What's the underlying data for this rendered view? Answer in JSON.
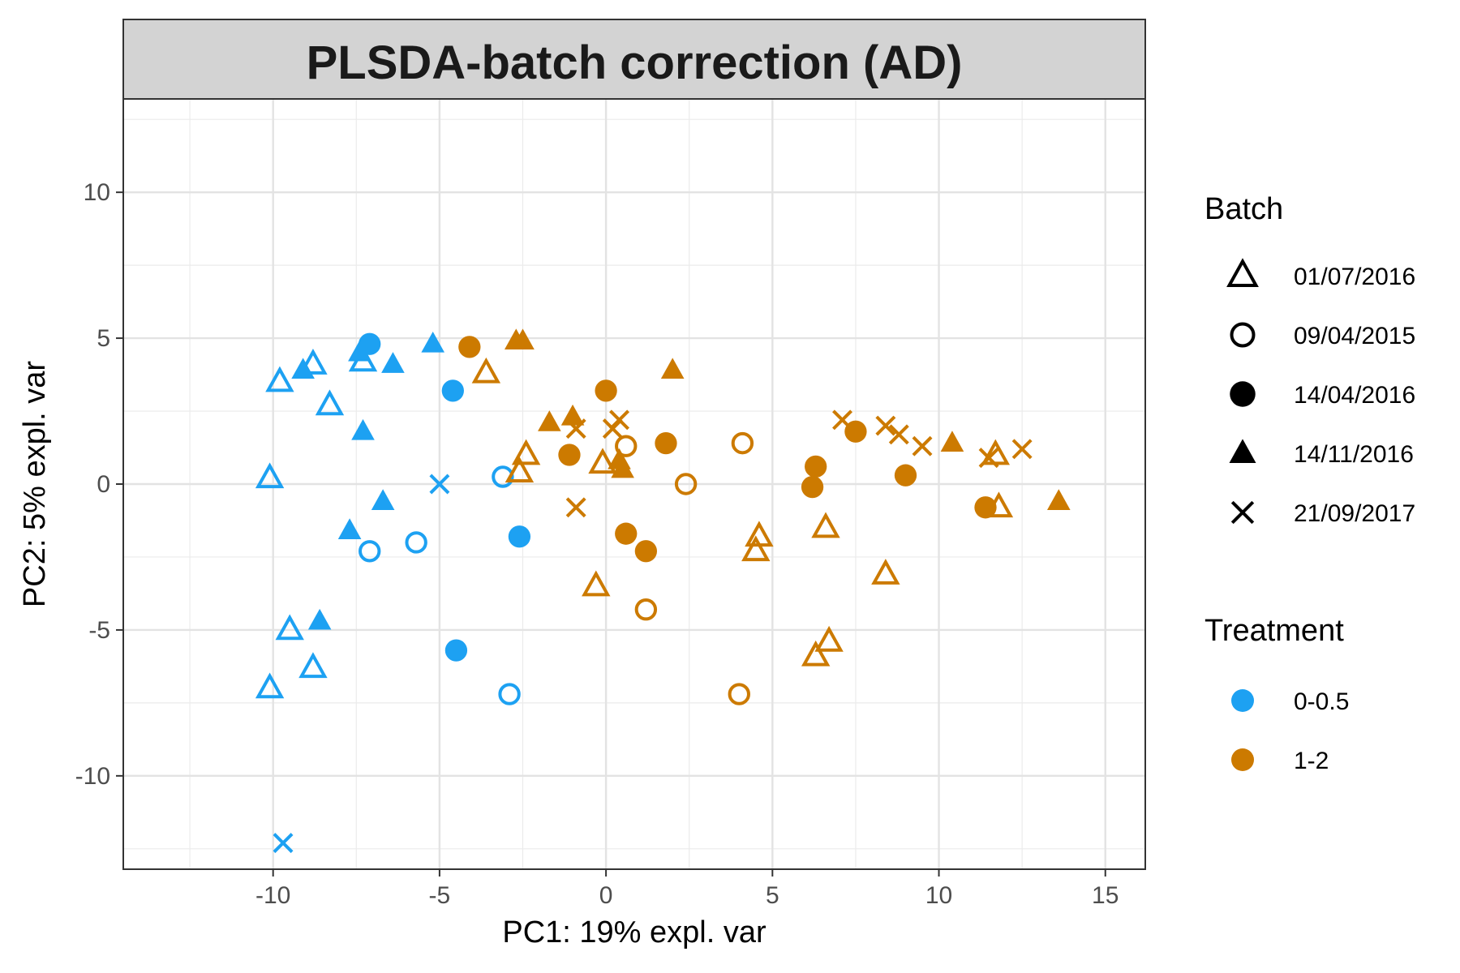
{
  "chart_data": {
    "type": "scatter",
    "title": "PLSDA-batch correction (AD)",
    "xlabel": "PC1: 19% expl. var",
    "ylabel": "PC2: 5% expl. var",
    "xlim": [
      -14.5,
      16.2
    ],
    "ylim": [
      -13.2,
      13.2
    ],
    "xticks": [
      -10,
      -5,
      0,
      5,
      10,
      15
    ],
    "xtick_labels": [
      "-10",
      "-5",
      "0",
      "5",
      "10",
      "15"
    ],
    "yticks": [
      -10,
      -5,
      0,
      5,
      10
    ],
    "ytick_labels": [
      "-10",
      "-5",
      "0",
      "5",
      "10"
    ],
    "grid": true,
    "legend_placement": "right",
    "batch_legend": {
      "title": "Batch",
      "items": [
        {
          "label": "01/07/2016",
          "shape": "triangle-open"
        },
        {
          "label": "09/04/2015",
          "shape": "circle-open"
        },
        {
          "label": "14/04/2016",
          "shape": "circle-filled"
        },
        {
          "label": "14/11/2016",
          "shape": "triangle-filled"
        },
        {
          "label": "21/09/2017",
          "shape": "cross"
        }
      ]
    },
    "treatment_legend": {
      "title": "Treatment",
      "items": [
        {
          "label": "0-0.5",
          "color": "#1da1f2"
        },
        {
          "label": "1-2",
          "color": "#cc7a00"
        }
      ]
    },
    "points": [
      {
        "x": -7.1,
        "y": 4.8,
        "batch": "14/04/2016",
        "treatment": "0-0.5"
      },
      {
        "x": -4.6,
        "y": 3.2,
        "batch": "14/04/2016",
        "treatment": "0-0.5"
      },
      {
        "x": -2.6,
        "y": -1.8,
        "batch": "14/04/2016",
        "treatment": "0-0.5"
      },
      {
        "x": -4.5,
        "y": -5.7,
        "batch": "14/04/2016",
        "treatment": "0-0.5"
      },
      {
        "x": -9.8,
        "y": 3.5,
        "batch": "01/07/2016",
        "treatment": "0-0.5"
      },
      {
        "x": -8.8,
        "y": 4.1,
        "batch": "01/07/2016",
        "treatment": "0-0.5"
      },
      {
        "x": -7.3,
        "y": 4.2,
        "batch": "01/07/2016",
        "treatment": "0-0.5"
      },
      {
        "x": -8.3,
        "y": 2.7,
        "batch": "01/07/2016",
        "treatment": "0-0.5"
      },
      {
        "x": -10.1,
        "y": 0.2,
        "batch": "01/07/2016",
        "treatment": "0-0.5"
      },
      {
        "x": -9.5,
        "y": -5.0,
        "batch": "01/07/2016",
        "treatment": "0-0.5"
      },
      {
        "x": -8.8,
        "y": -6.3,
        "batch": "01/07/2016",
        "treatment": "0-0.5"
      },
      {
        "x": -10.1,
        "y": -7.0,
        "batch": "01/07/2016",
        "treatment": "0-0.5"
      },
      {
        "x": -9.1,
        "y": 3.9,
        "batch": "14/11/2016",
        "treatment": "0-0.5"
      },
      {
        "x": -7.4,
        "y": 4.5,
        "batch": "14/11/2016",
        "treatment": "0-0.5"
      },
      {
        "x": -6.4,
        "y": 4.1,
        "batch": "14/11/2016",
        "treatment": "0-0.5"
      },
      {
        "x": -5.2,
        "y": 4.8,
        "batch": "14/11/2016",
        "treatment": "0-0.5"
      },
      {
        "x": -7.3,
        "y": 1.8,
        "batch": "14/11/2016",
        "treatment": "0-0.5"
      },
      {
        "x": -6.7,
        "y": -0.6,
        "batch": "14/11/2016",
        "treatment": "0-0.5"
      },
      {
        "x": -7.7,
        "y": -1.6,
        "batch": "14/11/2016",
        "treatment": "0-0.5"
      },
      {
        "x": -8.6,
        "y": -4.7,
        "batch": "14/11/2016",
        "treatment": "0-0.5"
      },
      {
        "x": -3.1,
        "y": 0.25,
        "batch": "09/04/2015",
        "treatment": "0-0.5"
      },
      {
        "x": -7.1,
        "y": -2.3,
        "batch": "09/04/2015",
        "treatment": "0-0.5"
      },
      {
        "x": -5.7,
        "y": -2.0,
        "batch": "09/04/2015",
        "treatment": "0-0.5"
      },
      {
        "x": -2.9,
        "y": -7.2,
        "batch": "09/04/2015",
        "treatment": "0-0.5"
      },
      {
        "x": -5.0,
        "y": 0.0,
        "batch": "21/09/2017",
        "treatment": "0-0.5"
      },
      {
        "x": -9.7,
        "y": -12.3,
        "batch": "21/09/2017",
        "treatment": "0-0.5"
      },
      {
        "x": -4.1,
        "y": 4.7,
        "batch": "14/04/2016",
        "treatment": "1-2"
      },
      {
        "x": 0.0,
        "y": 3.2,
        "batch": "14/04/2016",
        "treatment": "1-2"
      },
      {
        "x": -1.1,
        "y": 1.0,
        "batch": "14/04/2016",
        "treatment": "1-2"
      },
      {
        "x": 1.8,
        "y": 1.4,
        "batch": "14/04/2016",
        "treatment": "1-2"
      },
      {
        "x": 0.6,
        "y": -1.7,
        "batch": "14/04/2016",
        "treatment": "1-2"
      },
      {
        "x": 1.2,
        "y": -2.3,
        "batch": "14/04/2016",
        "treatment": "1-2"
      },
      {
        "x": 6.3,
        "y": 0.6,
        "batch": "14/04/2016",
        "treatment": "1-2"
      },
      {
        "x": 6.2,
        "y": -0.1,
        "batch": "14/04/2016",
        "treatment": "1-2"
      },
      {
        "x": 7.5,
        "y": 1.8,
        "batch": "14/04/2016",
        "treatment": "1-2"
      },
      {
        "x": 9.0,
        "y": 0.3,
        "batch": "14/04/2016",
        "treatment": "1-2"
      },
      {
        "x": 11.4,
        "y": -0.8,
        "batch": "14/04/2016",
        "treatment": "1-2"
      },
      {
        "x": -3.6,
        "y": 3.8,
        "batch": "01/07/2016",
        "treatment": "1-2"
      },
      {
        "x": -2.4,
        "y": 1.0,
        "batch": "01/07/2016",
        "treatment": "1-2"
      },
      {
        "x": -2.6,
        "y": 0.4,
        "batch": "01/07/2016",
        "treatment": "1-2"
      },
      {
        "x": -0.1,
        "y": 0.7,
        "batch": "01/07/2016",
        "treatment": "1-2"
      },
      {
        "x": -0.3,
        "y": -3.5,
        "batch": "01/07/2016",
        "treatment": "1-2"
      },
      {
        "x": 4.6,
        "y": -1.8,
        "batch": "01/07/2016",
        "treatment": "1-2"
      },
      {
        "x": 4.5,
        "y": -2.3,
        "batch": "01/07/2016",
        "treatment": "1-2"
      },
      {
        "x": 6.6,
        "y": -1.5,
        "batch": "01/07/2016",
        "treatment": "1-2"
      },
      {
        "x": 8.4,
        "y": -3.1,
        "batch": "01/07/2016",
        "treatment": "1-2"
      },
      {
        "x": 6.3,
        "y": -5.9,
        "batch": "01/07/2016",
        "treatment": "1-2"
      },
      {
        "x": 6.7,
        "y": -5.4,
        "batch": "01/07/2016",
        "treatment": "1-2"
      },
      {
        "x": 11.7,
        "y": 1.0,
        "batch": "01/07/2016",
        "treatment": "1-2"
      },
      {
        "x": 11.8,
        "y": -0.8,
        "batch": "01/07/2016",
        "treatment": "1-2"
      },
      {
        "x": -2.7,
        "y": 4.9,
        "batch": "14/11/2016",
        "treatment": "1-2"
      },
      {
        "x": -2.5,
        "y": 4.9,
        "batch": "14/11/2016",
        "treatment": "1-2"
      },
      {
        "x": 2.0,
        "y": 3.9,
        "batch": "14/11/2016",
        "treatment": "1-2"
      },
      {
        "x": -1.7,
        "y": 2.1,
        "batch": "14/11/2016",
        "treatment": "1-2"
      },
      {
        "x": -1.0,
        "y": 2.3,
        "batch": "14/11/2016",
        "treatment": "1-2"
      },
      {
        "x": 0.4,
        "y": 0.8,
        "batch": "14/11/2016",
        "treatment": "1-2"
      },
      {
        "x": 0.5,
        "y": 0.5,
        "batch": "14/11/2016",
        "treatment": "1-2"
      },
      {
        "x": 10.4,
        "y": 1.4,
        "batch": "14/11/2016",
        "treatment": "1-2"
      },
      {
        "x": 13.6,
        "y": -0.6,
        "batch": "14/11/2016",
        "treatment": "1-2"
      },
      {
        "x": 0.6,
        "y": 1.3,
        "batch": "09/04/2015",
        "treatment": "1-2"
      },
      {
        "x": 2.4,
        "y": 0.0,
        "batch": "09/04/2015",
        "treatment": "1-2"
      },
      {
        "x": 4.1,
        "y": 1.4,
        "batch": "09/04/2015",
        "treatment": "1-2"
      },
      {
        "x": 1.2,
        "y": -4.3,
        "batch": "09/04/2015",
        "treatment": "1-2"
      },
      {
        "x": 4.0,
        "y": -7.2,
        "batch": "09/04/2015",
        "treatment": "1-2"
      },
      {
        "x": -0.9,
        "y": 1.9,
        "batch": "21/09/2017",
        "treatment": "1-2"
      },
      {
        "x": 0.2,
        "y": 1.9,
        "batch": "21/09/2017",
        "treatment": "1-2"
      },
      {
        "x": 0.4,
        "y": 2.2,
        "batch": "21/09/2017",
        "treatment": "1-2"
      },
      {
        "x": -0.9,
        "y": -0.8,
        "batch": "21/09/2017",
        "treatment": "1-2"
      },
      {
        "x": 7.1,
        "y": 2.2,
        "batch": "21/09/2017",
        "treatment": "1-2"
      },
      {
        "x": 8.4,
        "y": 2.0,
        "batch": "21/09/2017",
        "treatment": "1-2"
      },
      {
        "x": 8.8,
        "y": 1.7,
        "batch": "21/09/2017",
        "treatment": "1-2"
      },
      {
        "x": 9.5,
        "y": 1.3,
        "batch": "21/09/2017",
        "treatment": "1-2"
      },
      {
        "x": 11.5,
        "y": 0.9,
        "batch": "21/09/2017",
        "treatment": "1-2"
      },
      {
        "x": 12.5,
        "y": 1.2,
        "batch": "21/09/2017",
        "treatment": "1-2"
      }
    ]
  }
}
